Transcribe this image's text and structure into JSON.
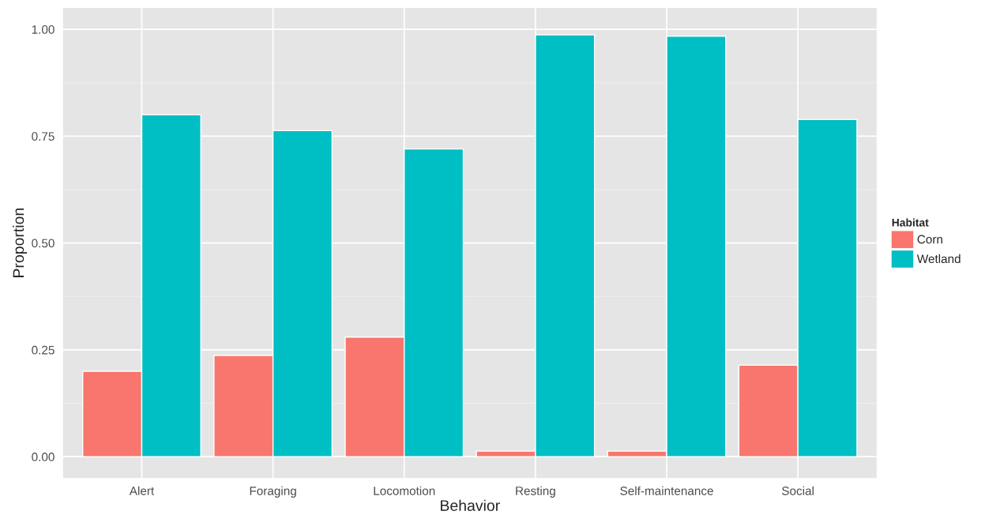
{
  "chart_data": {
    "type": "bar",
    "xlabel": "Behavior",
    "ylabel": "Proportion",
    "legend_title": "Habitat",
    "categories": [
      "Alert",
      "Foraging",
      "Locomotion",
      "Resting",
      "Self-maintenance",
      "Social"
    ],
    "series": [
      {
        "name": "Corn",
        "color": "#f8766d",
        "values": [
          0.2,
          0.237,
          0.28,
          0.013,
          0.013,
          0.214
        ]
      },
      {
        "name": "Wetland",
        "color": "#00bfc4",
        "values": [
          0.8,
          0.763,
          0.72,
          0.987,
          0.984,
          0.789
        ]
      }
    ],
    "ylim": [
      -0.05,
      1.05
    ],
    "yticks": [
      {
        "value": 0,
        "label": "0.00"
      },
      {
        "value": 0.25,
        "label": "0.25"
      },
      {
        "value": 0.5,
        "label": "0.50"
      },
      {
        "value": 0.75,
        "label": "0.75"
      },
      {
        "value": 1,
        "label": "1.00"
      }
    ],
    "grid": true,
    "legend": "right"
  }
}
